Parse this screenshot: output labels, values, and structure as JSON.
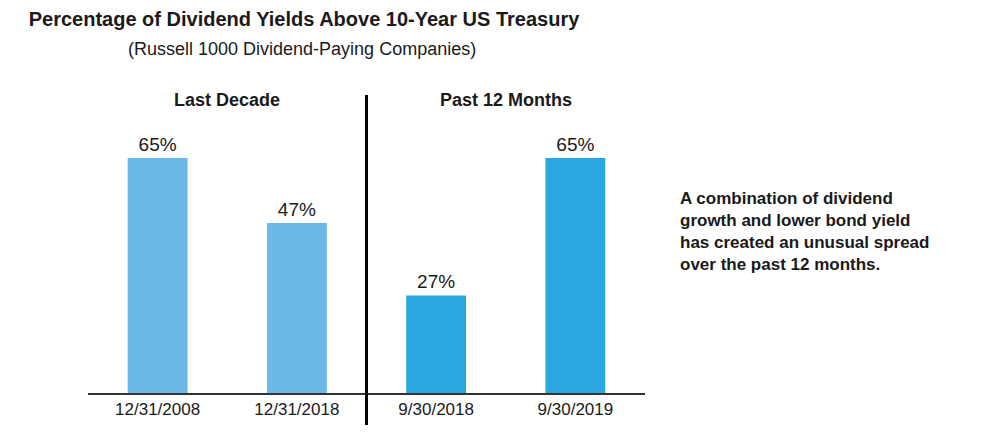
{
  "chart_data": {
    "type": "bar",
    "title": "Percentage of Dividend Yields Above 10-Year US Treasury",
    "subtitle": "(Russell 1000 Dividend-Paying Companies)",
    "categories": [
      "12/31/2008",
      "12/31/2018",
      "9/30/2018",
      "9/30/2019"
    ],
    "values": [
      65,
      47,
      27,
      65
    ],
    "value_labels": [
      "65%",
      "47%",
      "27%",
      "65%"
    ],
    "colors": [
      "#6cb8e6",
      "#6cb8e6",
      "#29a8e0",
      "#29a8e0"
    ],
    "groups": [
      {
        "name": "Last Decade",
        "categories": [
          "12/31/2008",
          "12/31/2018"
        ]
      },
      {
        "name": "Past 12 Months",
        "categories": [
          "9/30/2018",
          "9/30/2019"
        ]
      }
    ],
    "annotation": [
      "A combination of dividend",
      "growth and lower bond yield",
      "has created an unusual spread",
      "over the past 12 months."
    ],
    "ylim": [
      0,
      65
    ],
    "grid": false,
    "data_labels": true,
    "tick_labels": "x"
  }
}
